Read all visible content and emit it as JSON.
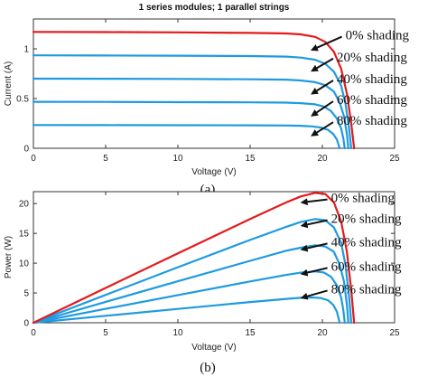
{
  "chart_data": [
    {
      "type": "line",
      "title": "1 series modules; 1 parallel strings",
      "xlabel": "Voltage (V)",
      "ylabel": "Current (A)",
      "xlim": [
        0,
        25
      ],
      "ylim": [
        0,
        1.3
      ],
      "xticks": [
        0,
        5,
        10,
        15,
        20,
        25
      ],
      "yticks": [
        0,
        0.5,
        1
      ],
      "grid": false,
      "sublabel": "(a)",
      "series": [
        {
          "name": "0% shading",
          "color": "#e41a1c",
          "x": [
            0,
            5,
            10,
            15,
            17.5,
            18.5,
            19.5,
            20.2,
            20.8,
            21.3,
            21.7,
            22.0,
            22.2
          ],
          "y": [
            1.17,
            1.168,
            1.165,
            1.16,
            1.155,
            1.145,
            1.12,
            1.07,
            0.97,
            0.8,
            0.55,
            0.25,
            0
          ]
        },
        {
          "name": "20% shading",
          "color": "#1f9ae0",
          "x": [
            0,
            5,
            10,
            15,
            17.5,
            18.5,
            19.5,
            20.2,
            20.8,
            21.3,
            21.6,
            21.85,
            22.0
          ],
          "y": [
            0.935,
            0.933,
            0.931,
            0.927,
            0.922,
            0.912,
            0.89,
            0.85,
            0.77,
            0.63,
            0.45,
            0.2,
            0
          ]
        },
        {
          "name": "40% shading",
          "color": "#1f9ae0",
          "x": [
            0,
            5,
            10,
            15,
            17.5,
            18.5,
            19.5,
            20.2,
            20.8,
            21.2,
            21.5,
            21.7,
            21.8
          ],
          "y": [
            0.7,
            0.699,
            0.697,
            0.694,
            0.69,
            0.682,
            0.665,
            0.635,
            0.57,
            0.46,
            0.32,
            0.14,
            0
          ]
        },
        {
          "name": "60% shading",
          "color": "#1f9ae0",
          "x": [
            0,
            5,
            10,
            15,
            17.5,
            18.5,
            19.5,
            20.1,
            20.6,
            21.0,
            21.3,
            21.45,
            21.55
          ],
          "y": [
            0.467,
            0.466,
            0.464,
            0.462,
            0.459,
            0.454,
            0.442,
            0.42,
            0.375,
            0.3,
            0.2,
            0.1,
            0
          ]
        },
        {
          "name": "80% shading",
          "color": "#1f9ae0",
          "x": [
            0,
            5,
            10,
            15,
            17.5,
            18.5,
            19.3,
            19.9,
            20.4,
            20.75,
            21.0,
            21.1,
            21.2
          ],
          "y": [
            0.234,
            0.233,
            0.232,
            0.231,
            0.229,
            0.226,
            0.22,
            0.208,
            0.185,
            0.145,
            0.09,
            0.045,
            0
          ]
        }
      ],
      "annotations": [
        {
          "text": "0% shading",
          "x_arrow": 19.3,
          "y_arrow": 0.99,
          "x_text": 21.6,
          "y_text": 1.14
        },
        {
          "text": "20% shading",
          "x_arrow": 19.3,
          "y_arrow": 0.78,
          "x_text": 21.0,
          "y_text": 0.92
        },
        {
          "text": "40% shading",
          "x_arrow": 19.3,
          "y_arrow": 0.55,
          "x_text": 21.0,
          "y_text": 0.7
        },
        {
          "text": "60% shading",
          "x_arrow": 19.3,
          "y_arrow": 0.33,
          "x_text": 21.0,
          "y_text": 0.49
        },
        {
          "text": "80% shading",
          "x_arrow": 19.3,
          "y_arrow": 0.13,
          "x_text": 21.0,
          "y_text": 0.28
        }
      ]
    },
    {
      "type": "line",
      "title": "",
      "xlabel": "Voltage (V)",
      "ylabel": "Power (W)",
      "xlim": [
        0,
        25
      ],
      "ylim": [
        0,
        22
      ],
      "xticks": [
        0,
        5,
        10,
        15,
        20,
        25
      ],
      "yticks": [
        0,
        5,
        10,
        15,
        20
      ],
      "grid": false,
      "sublabel": "(b)",
      "series": [
        {
          "name": "0% shading",
          "color": "#e41a1c",
          "x": [
            0,
            5,
            10,
            15,
            17.5,
            18.5,
            19.5,
            20.2,
            20.8,
            21.3,
            21.7,
            22.0,
            22.2
          ],
          "y": [
            0,
            5.84,
            11.65,
            17.4,
            20.2,
            21.2,
            21.8,
            21.6,
            20.2,
            17.0,
            11.9,
            5.5,
            0
          ]
        },
        {
          "name": "20% shading",
          "color": "#1f9ae0",
          "x": [
            0,
            5,
            10,
            15,
            17.5,
            18.5,
            19.5,
            20.2,
            20.8,
            21.3,
            21.6,
            21.85,
            22.0
          ],
          "y": [
            0,
            4.67,
            9.31,
            13.9,
            16.1,
            16.9,
            17.4,
            17.2,
            16.0,
            13.4,
            9.7,
            4.4,
            0
          ]
        },
        {
          "name": "40% shading",
          "color": "#1f9ae0",
          "x": [
            0,
            5,
            10,
            15,
            17.5,
            18.5,
            19.5,
            20.2,
            20.8,
            21.2,
            21.5,
            21.7,
            21.8
          ],
          "y": [
            0,
            3.5,
            6.97,
            10.4,
            12.1,
            12.6,
            13.0,
            12.8,
            11.9,
            9.75,
            6.9,
            3.0,
            0
          ]
        },
        {
          "name": "60% shading",
          "color": "#1f9ae0",
          "x": [
            0,
            5,
            10,
            15,
            17.5,
            18.5,
            19.5,
            20.1,
            20.6,
            21.0,
            21.3,
            21.45,
            21.55
          ],
          "y": [
            0,
            2.33,
            4.64,
            6.93,
            8.03,
            8.4,
            8.62,
            8.44,
            7.73,
            6.3,
            4.26,
            2.15,
            0
          ]
        },
        {
          "name": "80% shading",
          "color": "#1f9ae0",
          "x": [
            0,
            5,
            10,
            15,
            17.5,
            18.5,
            19.3,
            19.9,
            20.4,
            20.75,
            21.0,
            21.1,
            21.2
          ],
          "y": [
            0,
            1.17,
            2.32,
            3.47,
            4.0,
            4.18,
            4.25,
            4.14,
            3.77,
            3.0,
            1.89,
            0.95,
            0
          ]
        }
      ],
      "annotations": [
        {
          "text": "0% shading",
          "x_arrow": 18.6,
          "y_arrow": 20.2,
          "x_text": 20.6,
          "y_text": 21.0
        },
        {
          "text": "20% shading",
          "x_arrow": 18.6,
          "y_arrow": 16.3,
          "x_text": 20.6,
          "y_text": 17.5
        },
        {
          "text": "40% shading",
          "x_arrow": 18.6,
          "y_arrow": 12.3,
          "x_text": 20.6,
          "y_text": 13.6
        },
        {
          "text": "60% shading",
          "x_arrow": 18.6,
          "y_arrow": 8.2,
          "x_text": 20.6,
          "y_text": 9.5
        },
        {
          "text": "80% shading",
          "x_arrow": 18.6,
          "y_arrow": 4.2,
          "x_text": 20.6,
          "y_text": 5.7
        }
      ]
    }
  ]
}
